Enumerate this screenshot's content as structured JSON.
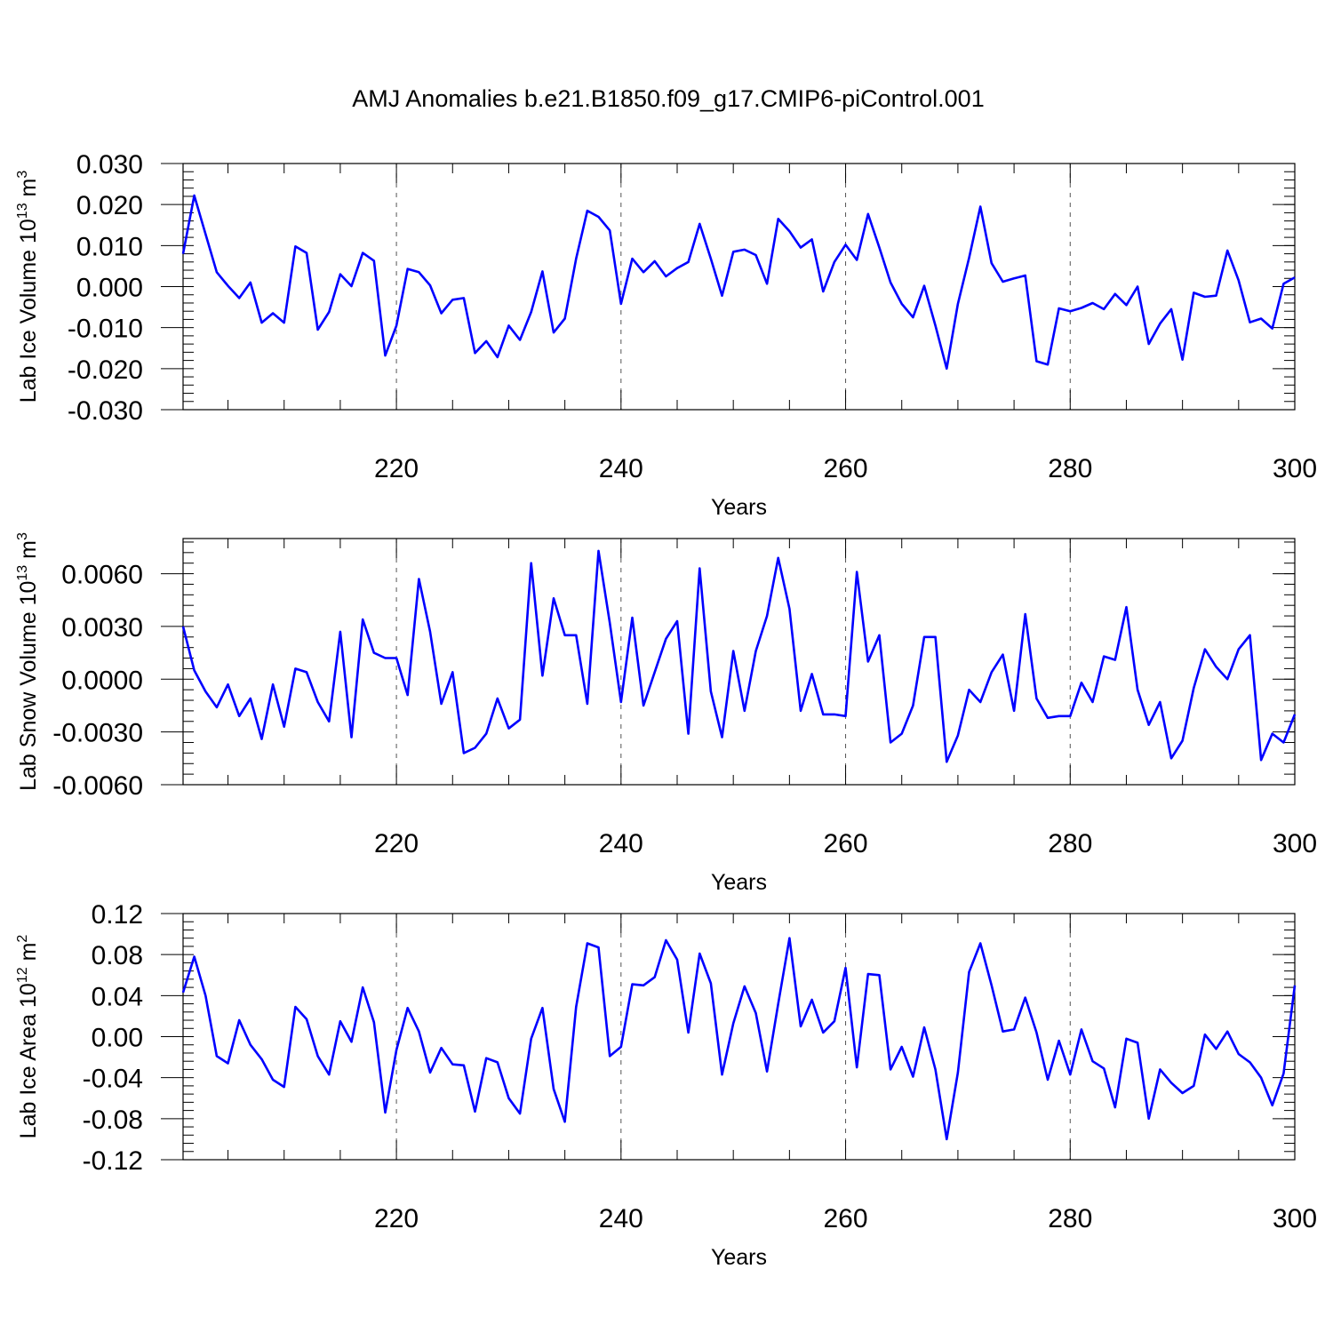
{
  "figure_title": "AMJ Anomalies b.e21.B1850.f09_g17.CMIP6-piControl.001",
  "line_color": "#0000ff",
  "chart_data": [
    {
      "type": "line",
      "ylabel_main": "Lab Ice Volume 10",
      "ylabel_exp": "13",
      "ylabel_unit": " m",
      "ylabel_unit_exp": "3",
      "xlabel": "Years",
      "xlim": [
        201,
        300
      ],
      "ylim": [
        -0.03,
        0.03
      ],
      "xticks": [
        220,
        240,
        260,
        280,
        300
      ],
      "xtick_labels": [
        "220",
        "240",
        "260",
        "280",
        "300"
      ],
      "yticks": [
        -0.03,
        -0.02,
        -0.01,
        0.0,
        0.01,
        0.02,
        0.03
      ],
      "ytick_labels": [
        "-0.030",
        "-0.020",
        "-0.010",
        "0.000",
        "0.010",
        "0.020",
        "0.030"
      ],
      "vlines": [
        220,
        240,
        260,
        280
      ],
      "x_start": 201,
      "values": [
        0.008,
        0.0222,
        0.0128,
        0.0035,
        0.0002,
        -0.0028,
        0.001,
        -0.0088,
        -0.0065,
        -0.0088,
        0.0098,
        0.0082,
        -0.0105,
        -0.0062,
        0.003,
        0.0001,
        0.0082,
        0.0063,
        -0.0168,
        -0.0095,
        0.0043,
        0.0035,
        0.0003,
        -0.0065,
        -0.0032,
        -0.0028,
        -0.0162,
        -0.0133,
        -0.0172,
        -0.0095,
        -0.013,
        -0.0062,
        0.0037,
        -0.0112,
        -0.0078,
        0.0068,
        0.0185,
        0.017,
        0.0137,
        -0.0042,
        0.0068,
        0.0035,
        0.0062,
        0.0025,
        0.0045,
        0.006,
        0.0153,
        0.0068,
        -0.0022,
        0.0085,
        0.009,
        0.0077,
        0.0007,
        0.0165,
        0.0135,
        0.0095,
        0.0115,
        -0.0012,
        0.006,
        0.0102,
        0.0065,
        0.0177,
        0.0095,
        0.001,
        -0.0042,
        -0.0075,
        0.0002,
        -0.0095,
        -0.02,
        -0.0042,
        0.007,
        0.0195,
        0.0057,
        0.0012,
        0.002,
        0.0027,
        -0.0182,
        -0.019,
        -0.0053,
        -0.006,
        -0.0052,
        -0.004,
        -0.0055,
        -0.0018,
        -0.0045,
        0.0,
        -0.014,
        -0.009,
        -0.0055,
        -0.0178,
        -0.0015,
        -0.0025,
        -0.0022,
        0.0088,
        0.0015,
        -0.0087,
        -0.0078,
        -0.0102,
        0.0007,
        0.0022
      ]
    },
    {
      "type": "line",
      "ylabel_main": "Lab Snow Volume 10",
      "ylabel_exp": "13",
      "ylabel_unit": " m",
      "ylabel_unit_exp": "3",
      "xlabel": "Years",
      "xlim": [
        201,
        300
      ],
      "ylim": [
        -0.006,
        0.008
      ],
      "xticks": [
        220,
        240,
        260,
        280,
        300
      ],
      "xtick_labels": [
        "220",
        "240",
        "260",
        "280",
        "300"
      ],
      "yticks": [
        -0.006,
        -0.003,
        0.0,
        0.003,
        0.006
      ],
      "ytick_labels": [
        "-0.0060",
        "-0.0030",
        "0.0000",
        "0.0030",
        "0.0060"
      ],
      "vlines": [
        220,
        240,
        260,
        280
      ],
      "x_start": 201,
      "values": [
        0.003,
        0.0005,
        -0.0007,
        -0.0016,
        -0.0003,
        -0.0021,
        -0.0011,
        -0.0034,
        -0.0003,
        -0.0027,
        0.0006,
        0.0004,
        -0.0013,
        -0.0024,
        0.0027,
        -0.0033,
        0.0034,
        0.0015,
        0.0012,
        0.0012,
        -0.0009,
        0.0057,
        0.0027,
        -0.0014,
        0.0004,
        -0.0042,
        -0.0039,
        -0.0031,
        -0.0011,
        -0.0028,
        -0.0023,
        0.0066,
        0.0002,
        0.0046,
        0.0025,
        0.0025,
        -0.0014,
        0.0073,
        0.0032,
        -0.0013,
        0.0035,
        -0.0015,
        0.0004,
        0.0023,
        0.0033,
        -0.0031,
        0.0063,
        -0.0007,
        -0.0033,
        0.0016,
        -0.0018,
        0.0016,
        0.0036,
        0.0069,
        0.004,
        -0.0018,
        0.0003,
        -0.002,
        -0.002,
        -0.0021,
        0.0061,
        0.001,
        0.0025,
        -0.0036,
        -0.0031,
        -0.0015,
        0.0024,
        0.0024,
        -0.0047,
        -0.0032,
        -0.0006,
        -0.0013,
        0.0004,
        0.0014,
        -0.0018,
        0.0037,
        -0.0011,
        -0.0022,
        -0.0021,
        -0.0021,
        -0.0002,
        -0.0013,
        0.0013,
        0.0011,
        0.0041,
        -0.0006,
        -0.0026,
        -0.0013,
        -0.0045,
        -0.0035,
        -0.0005,
        0.0017,
        0.0007,
        0.0,
        0.0017,
        0.0025,
        -0.0046,
        -0.0031,
        -0.0036,
        -0.002
      ]
    },
    {
      "type": "line",
      "ylabel_main": "Lab Ice Area 10",
      "ylabel_exp": "12",
      "ylabel_unit": " m",
      "ylabel_unit_exp": "2",
      "xlabel": "Years",
      "xlim": [
        201,
        300
      ],
      "ylim": [
        -0.12,
        0.12
      ],
      "xticks": [
        220,
        240,
        260,
        280,
        300
      ],
      "xtick_labels": [
        "220",
        "240",
        "260",
        "280",
        "300"
      ],
      "yticks": [
        -0.12,
        -0.08,
        -0.04,
        0.0,
        0.04,
        0.08,
        0.12
      ],
      "ytick_labels": [
        "-0.12",
        "-0.08",
        "-0.04",
        "0.00",
        "0.04",
        "0.08",
        "0.12"
      ],
      "vlines": [
        220,
        240,
        260,
        280
      ],
      "x_start": 201,
      "values": [
        0.043,
        0.078,
        0.04,
        -0.019,
        -0.026,
        0.016,
        -0.008,
        -0.022,
        -0.042,
        -0.049,
        0.029,
        0.017,
        -0.019,
        -0.037,
        0.015,
        -0.005,
        0.048,
        0.014,
        -0.074,
        -0.013,
        0.028,
        0.005,
        -0.035,
        -0.011,
        -0.027,
        -0.028,
        -0.073,
        -0.021,
        -0.025,
        -0.06,
        -0.075,
        -0.002,
        0.028,
        -0.051,
        -0.083,
        0.029,
        0.091,
        0.087,
        -0.019,
        -0.01,
        0.051,
        0.05,
        0.058,
        0.094,
        0.075,
        0.004,
        0.081,
        0.052,
        -0.037,
        0.013,
        0.049,
        0.023,
        -0.034,
        0.032,
        0.096,
        0.01,
        0.036,
        0.004,
        0.015,
        0.067,
        -0.03,
        0.061,
        0.06,
        -0.032,
        -0.01,
        -0.039,
        0.009,
        -0.032,
        -0.1,
        -0.035,
        0.063,
        0.091,
        0.05,
        0.005,
        0.007,
        0.038,
        0.004,
        -0.042,
        -0.004,
        -0.037,
        0.007,
        -0.024,
        -0.031,
        -0.069,
        -0.002,
        -0.006,
        -0.08,
        -0.032,
        -0.045,
        -0.055,
        -0.048,
        0.002,
        -0.012,
        0.005,
        -0.017,
        -0.025,
        -0.04,
        -0.067,
        -0.036,
        0.05
      ]
    }
  ]
}
